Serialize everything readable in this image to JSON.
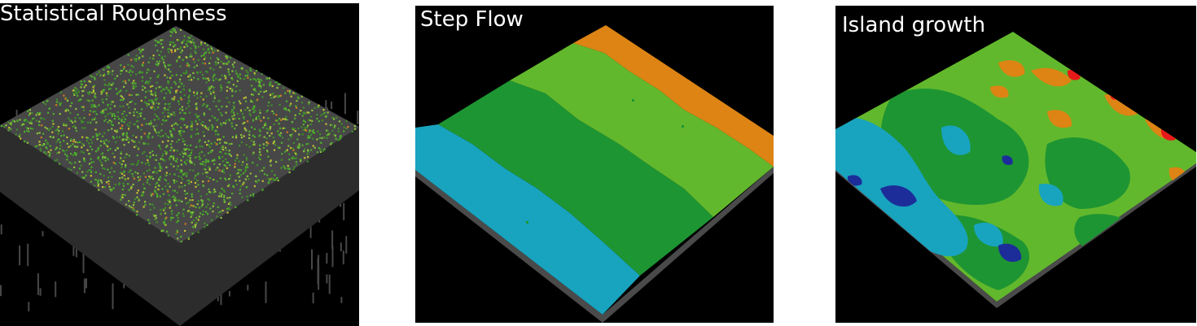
{
  "panels": [
    {
      "title": "Statistical Roughness"
    },
    {
      "title": "Step Flow"
    },
    {
      "title": "Island growth"
    }
  ],
  "colors": {
    "background": "#000000",
    "rough_base": "#474747",
    "rough_dark": "#2c2c2c",
    "dots": [
      "#3f8f2a",
      "#4fae2d",
      "#8cc23d",
      "#c2c133",
      "#d27a25"
    ],
    "terrace_cyan": "#18a3be",
    "terrace_dark_green": "#1e9533",
    "terrace_light_green": "#62b82c",
    "terrace_orange": "#dd8414",
    "island_blue": "#1c2d9a",
    "island_red": "#e81919",
    "edge": "#4a4a4a"
  }
}
